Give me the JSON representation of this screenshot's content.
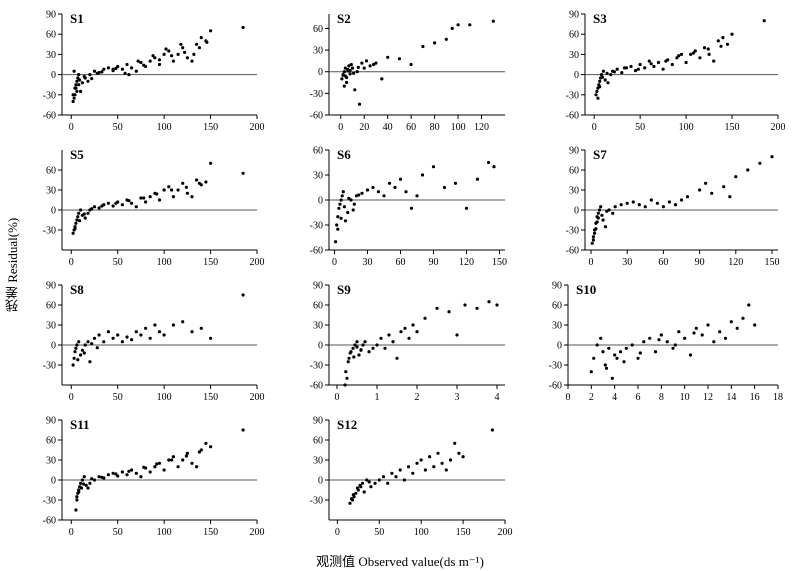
{
  "ylabel": "残差 Residual(%)",
  "xlabel": "观测值 Observed value(ds m⁻¹)",
  "chart_data": [
    {
      "type": "scatter",
      "title": "S1",
      "xlim": [
        -10,
        200
      ],
      "ylim": [
        -60,
        90
      ],
      "xticks": [
        0,
        50,
        100,
        150,
        200
      ],
      "yticks": [
        -60,
        -30,
        0,
        30,
        60,
        90
      ],
      "reference_line_y": 0,
      "x": [
        2,
        3,
        4,
        5,
        6,
        7,
        8,
        3,
        5,
        9,
        12,
        15,
        20,
        25,
        30,
        35,
        40,
        45,
        50,
        55,
        60,
        65,
        70,
        75,
        80,
        85,
        90,
        95,
        100,
        105,
        110,
        115,
        120,
        125,
        130,
        135,
        140,
        145,
        150,
        185,
        10,
        18,
        28,
        45,
        62,
        78,
        95,
        108,
        122,
        138,
        4,
        6,
        8,
        2,
        14,
        22,
        33,
        48,
        58,
        72,
        88,
        102,
        118,
        132,
        146
      ],
      "y": [
        -40,
        -35,
        -30,
        -20,
        -10,
        -5,
        0,
        5,
        -15,
        -8,
        -12,
        -5,
        0,
        5,
        3,
        8,
        10,
        6,
        12,
        8,
        15,
        10,
        5,
        18,
        12,
        20,
        25,
        15,
        30,
        35,
        20,
        30,
        40,
        25,
        20,
        45,
        55,
        50,
        65,
        70,
        -25,
        -10,
        2,
        8,
        0,
        14,
        22,
        28,
        33,
        40,
        -20,
        -25,
        -15,
        -30,
        -3,
        -6,
        4,
        9,
        2,
        20,
        28,
        38,
        45,
        30,
        48
      ]
    },
    {
      "type": "scatter",
      "title": "S2",
      "xlim": [
        -10,
        140
      ],
      "ylim": [
        -60,
        80
      ],
      "xticks": [
        0,
        20,
        40,
        60,
        80,
        100,
        120
      ],
      "yticks": [
        -60,
        -30,
        0,
        30,
        60
      ],
      "reference_line_y": 0,
      "x": [
        1,
        2,
        3,
        4,
        5,
        6,
        7,
        8,
        9,
        10,
        12,
        14,
        16,
        18,
        20,
        22,
        25,
        28,
        30,
        35,
        40,
        50,
        60,
        70,
        80,
        90,
        95,
        100,
        110,
        130,
        3,
        5,
        8,
        11,
        15,
        2,
        4,
        6
      ],
      "y": [
        -10,
        -5,
        0,
        5,
        -8,
        3,
        8,
        -3,
        10,
        5,
        -25,
        0,
        -45,
        12,
        5,
        15,
        8,
        10,
        12,
        -10,
        20,
        18,
        10,
        35,
        40,
        45,
        60,
        65,
        65,
        70,
        -20,
        -15,
        2,
        -2,
        6,
        -4,
        -6,
        1
      ]
    },
    {
      "type": "scatter",
      "title": "S3",
      "xlim": [
        -10,
        200
      ],
      "ylim": [
        -60,
        90
      ],
      "xticks": [
        0,
        50,
        100,
        150,
        200
      ],
      "yticks": [
        -60,
        -30,
        0,
        30,
        60,
        90
      ],
      "reference_line_y": 0,
      "x": [
        2,
        3,
        4,
        5,
        6,
        7,
        8,
        10,
        12,
        15,
        18,
        20,
        25,
        30,
        35,
        40,
        45,
        50,
        55,
        60,
        65,
        70,
        75,
        80,
        85,
        90,
        95,
        100,
        105,
        110,
        115,
        120,
        125,
        130,
        135,
        140,
        145,
        150,
        185,
        4,
        6,
        9,
        14,
        22,
        33,
        48,
        62,
        78,
        92,
        108,
        124,
        138
      ],
      "y": [
        -30,
        -25,
        -20,
        -15,
        -10,
        -5,
        0,
        5,
        -8,
        -12,
        0,
        5,
        8,
        3,
        10,
        12,
        6,
        15,
        10,
        20,
        12,
        18,
        8,
        22,
        15,
        25,
        30,
        18,
        30,
        35,
        25,
        40,
        30,
        20,
        50,
        55,
        45,
        60,
        80,
        -35,
        -18,
        -4,
        2,
        4,
        10,
        8,
        16,
        20,
        28,
        32,
        38,
        42
      ]
    },
    {
      "type": "scatter",
      "title": "S5",
      "xlim": [
        -10,
        200
      ],
      "ylim": [
        -60,
        90
      ],
      "xticks": [
        0,
        50,
        100,
        150,
        200
      ],
      "yticks": [
        -30,
        0,
        30,
        60
      ],
      "reference_line_y": 0,
      "x": [
        2,
        3,
        4,
        5,
        6,
        7,
        8,
        10,
        12,
        15,
        18,
        20,
        25,
        30,
        35,
        40,
        45,
        50,
        55,
        60,
        65,
        70,
        75,
        80,
        85,
        90,
        95,
        100,
        105,
        110,
        115,
        120,
        125,
        130,
        135,
        140,
        145,
        150,
        185,
        4,
        9,
        14,
        22,
        33,
        48,
        62,
        78,
        92,
        108,
        124,
        138
      ],
      "y": [
        -35,
        -30,
        -25,
        -20,
        -15,
        -10,
        -5,
        0,
        -8,
        -12,
        -5,
        0,
        5,
        3,
        8,
        10,
        6,
        12,
        8,
        15,
        10,
        5,
        18,
        12,
        20,
        25,
        15,
        30,
        35,
        20,
        30,
        40,
        25,
        20,
        45,
        38,
        42,
        70,
        55,
        -28,
        -16,
        -6,
        2,
        6,
        10,
        14,
        18,
        24,
        30,
        34,
        40
      ]
    },
    {
      "type": "scatter",
      "title": "S6",
      "xlim": [
        -5,
        155
      ],
      "ylim": [
        -60,
        60
      ],
      "xticks": [
        0,
        30,
        60,
        90,
        120,
        150
      ],
      "yticks": [
        -60,
        -30,
        0,
        30,
        60
      ],
      "reference_line_y": 0,
      "x": [
        1,
        2,
        3,
        4,
        5,
        6,
        7,
        8,
        10,
        12,
        15,
        18,
        20,
        25,
        30,
        35,
        40,
        45,
        50,
        55,
        60,
        65,
        70,
        75,
        80,
        90,
        100,
        110,
        120,
        130,
        140,
        145,
        3,
        6,
        9,
        13,
        17,
        22
      ],
      "y": [
        -50,
        -30,
        -20,
        -10,
        -5,
        0,
        5,
        10,
        -25,
        -15,
        0,
        -5,
        5,
        8,
        12,
        15,
        10,
        5,
        20,
        15,
        25,
        10,
        -10,
        5,
        30,
        40,
        15,
        20,
        -10,
        25,
        45,
        40,
        -35,
        -22,
        -8,
        2,
        -12,
        6
      ]
    },
    {
      "type": "scatter",
      "title": "S7",
      "xlim": [
        -5,
        155
      ],
      "ylim": [
        -60,
        90
      ],
      "xticks": [
        0,
        30,
        60,
        90,
        120,
        150
      ],
      "yticks": [
        -60,
        -30,
        0,
        30,
        60,
        90
      ],
      "reference_line_y": 0,
      "x": [
        1,
        2,
        3,
        4,
        5,
        6,
        7,
        8,
        10,
        12,
        15,
        18,
        20,
        25,
        30,
        35,
        40,
        45,
        50,
        55,
        60,
        65,
        70,
        75,
        80,
        90,
        95,
        100,
        110,
        115,
        120,
        130,
        140,
        150,
        3,
        5,
        9,
        13,
        2,
        4,
        6
      ],
      "y": [
        -50,
        -40,
        -30,
        -20,
        -10,
        -5,
        0,
        5,
        -15,
        -25,
        0,
        -5,
        5,
        8,
        10,
        12,
        8,
        5,
        15,
        10,
        5,
        12,
        8,
        15,
        20,
        30,
        40,
        25,
        35,
        20,
        50,
        60,
        70,
        80,
        -35,
        -18,
        -8,
        -2,
        -45,
        -28,
        -12
      ]
    },
    {
      "type": "scatter",
      "title": "S8",
      "xlim": [
        -10,
        200
      ],
      "ylim": [
        -60,
        90
      ],
      "xticks": [
        0,
        50,
        100,
        150,
        200
      ],
      "yticks": [
        -30,
        0,
        30,
        60,
        90
      ],
      "reference_line_y": 0,
      "x": [
        2,
        3,
        4,
        5,
        6,
        8,
        10,
        12,
        15,
        18,
        20,
        25,
        30,
        35,
        40,
        45,
        50,
        55,
        60,
        65,
        70,
        75,
        80,
        85,
        90,
        95,
        100,
        110,
        120,
        130,
        140,
        150,
        185,
        7,
        14,
        22,
        28
      ],
      "y": [
        -30,
        -20,
        -10,
        -5,
        0,
        5,
        -15,
        -8,
        0,
        5,
        -25,
        10,
        15,
        5,
        20,
        10,
        15,
        5,
        12,
        8,
        20,
        15,
        25,
        10,
        30,
        20,
        15,
        30,
        35,
        20,
        25,
        10,
        75,
        -22,
        -12,
        2,
        -4
      ]
    },
    {
      "type": "scatter",
      "title": "S9",
      "xlim": [
        -0.2,
        4.2
      ],
      "ylim": [
        -60,
        90
      ],
      "xticks": [
        0,
        1,
        2,
        3,
        4
      ],
      "yticks": [
        -60,
        -30,
        0,
        30,
        60,
        90
      ],
      "reference_line_y": 0,
      "x": [
        0.2,
        0.25,
        0.3,
        0.35,
        0.4,
        0.45,
        0.5,
        0.55,
        0.6,
        0.65,
        0.7,
        0.8,
        0.9,
        1.0,
        1.1,
        1.2,
        1.3,
        1.4,
        1.5,
        1.6,
        1.7,
        1.8,
        1.9,
        2.0,
        2.2,
        2.5,
        2.8,
        3.0,
        3.2,
        3.5,
        3.8,
        4.0,
        0.22,
        0.28,
        0.33,
        0.42,
        0.5,
        0.6
      ],
      "y": [
        -60,
        -50,
        -20,
        -10,
        -5,
        0,
        5,
        -15,
        -8,
        0,
        5,
        -10,
        -5,
        0,
        10,
        -5,
        15,
        5,
        -20,
        20,
        25,
        10,
        30,
        20,
        40,
        55,
        50,
        15,
        60,
        55,
        65,
        60,
        -40,
        -25,
        -12,
        -18,
        -3,
        -7
      ]
    },
    {
      "type": "scatter",
      "title": "S10",
      "xlim": [
        0,
        18
      ],
      "ylim": [
        -60,
        90
      ],
      "xticks": [
        0,
        2,
        4,
        6,
        8,
        10,
        12,
        14,
        16,
        18
      ],
      "yticks": [
        -60,
        -30,
        0,
        30,
        60,
        90
      ],
      "reference_line_y": 0,
      "x": [
        2,
        2.2,
        2.5,
        2.8,
        3,
        3.2,
        3.5,
        3.8,
        4,
        4.2,
        4.5,
        5,
        5.5,
        6,
        6.5,
        7,
        7.5,
        8,
        8.5,
        9,
        9.5,
        10,
        10.5,
        11,
        11.5,
        12,
        12.5,
        13,
        13.5,
        14,
        14.5,
        15,
        15.5,
        16,
        3.3,
        4.8,
        6.2,
        7.8,
        9.2,
        10.8
      ],
      "y": [
        -40,
        -20,
        0,
        10,
        -10,
        -30,
        -5,
        -50,
        -15,
        -20,
        -10,
        -5,
        0,
        -20,
        5,
        10,
        -10,
        15,
        5,
        -5,
        20,
        10,
        -15,
        25,
        15,
        30,
        5,
        20,
        10,
        35,
        25,
        40,
        60,
        30,
        -35,
        -25,
        -12,
        8,
        0,
        18
      ]
    },
    {
      "type": "scatter",
      "title": "S11",
      "xlim": [
        -10,
        200
      ],
      "ylim": [
        -60,
        90
      ],
      "xticks": [
        0,
        50,
        100,
        150,
        200
      ],
      "yticks": [
        -60,
        -30,
        0,
        30,
        60,
        90
      ],
      "reference_line_y": 0,
      "x": [
        5,
        6,
        7,
        8,
        9,
        10,
        12,
        14,
        16,
        18,
        20,
        25,
        30,
        35,
        40,
        45,
        50,
        55,
        60,
        65,
        70,
        75,
        80,
        85,
        90,
        95,
        100,
        105,
        110,
        115,
        120,
        125,
        130,
        135,
        140,
        145,
        150,
        185,
        6,
        8,
        11,
        13,
        22,
        33,
        48,
        62,
        78,
        92,
        108,
        124,
        138
      ],
      "y": [
        -45,
        -30,
        -20,
        -15,
        -10,
        -5,
        0,
        5,
        -8,
        -12,
        -5,
        0,
        5,
        3,
        8,
        10,
        6,
        12,
        8,
        15,
        10,
        5,
        18,
        12,
        20,
        25,
        15,
        30,
        35,
        20,
        30,
        40,
        25,
        20,
        45,
        55,
        50,
        75,
        -25,
        -18,
        -12,
        -6,
        2,
        4,
        9,
        13,
        19,
        24,
        30,
        36,
        42
      ]
    },
    {
      "type": "scatter",
      "title": "S12",
      "xlim": [
        -10,
        200
      ],
      "ylim": [
        -60,
        90
      ],
      "xticks": [
        0,
        50,
        100,
        150,
        200
      ],
      "yticks": [
        -30,
        0,
        30,
        60,
        90
      ],
      "reference_line_y": 0,
      "x": [
        15,
        18,
        20,
        22,
        25,
        28,
        30,
        35,
        40,
        45,
        50,
        55,
        60,
        65,
        70,
        75,
        80,
        85,
        90,
        95,
        100,
        105,
        110,
        115,
        120,
        125,
        130,
        135,
        140,
        145,
        150,
        185,
        17,
        19,
        24,
        27,
        32,
        38
      ],
      "y": [
        -35,
        -30,
        -25,
        -20,
        -15,
        -10,
        -5,
        0,
        -10,
        -5,
        0,
        5,
        -5,
        10,
        5,
        15,
        0,
        20,
        10,
        25,
        30,
        15,
        35,
        20,
        40,
        25,
        15,
        30,
        55,
        40,
        35,
        75,
        -28,
        -22,
        -12,
        -8,
        -18,
        -3
      ]
    }
  ]
}
